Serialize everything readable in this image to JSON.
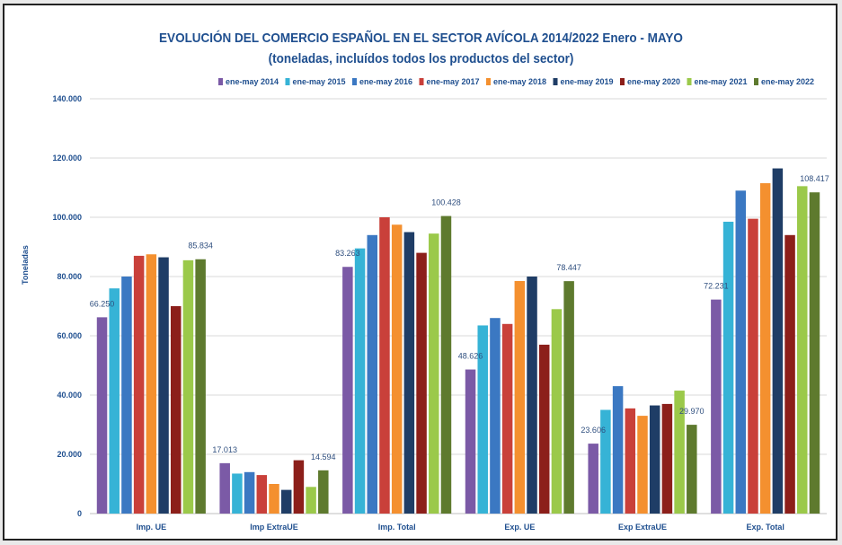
{
  "chart_data": {
    "type": "bar",
    "title": "EVOLUCIÓN DEL COMERCIO ESPAÑOL EN EL SECTOR AVÍCOLA 2014/2022 Enero - MAYO",
    "subtitle": "(toneladas, incluídos todos los productos del sector)",
    "ylabel": "Toneladas",
    "ylim": [
      0,
      140000
    ],
    "yticks": [
      0,
      20000,
      40000,
      60000,
      80000,
      100000,
      120000,
      140000
    ],
    "ytick_labels": [
      "0",
      "20.000",
      "40.000",
      "60.000",
      "80.000",
      "100.000",
      "120.000",
      "140.000"
    ],
    "legend_position": "top",
    "grid": true,
    "categories": [
      "Imp. UE",
      "Imp ExtraUE",
      "Imp. Total",
      "Exp. UE",
      "Exp ExtraUE",
      "Exp. Total"
    ],
    "series": [
      {
        "name": "ene-may 2014",
        "color": "#7b5aa6",
        "values": [
          66250,
          17013,
          83263,
          48626,
          23606,
          72231
        ]
      },
      {
        "name": "ene-may 2015",
        "color": "#36b3d6",
        "values": [
          76000,
          13500,
          89500,
          63500,
          35000,
          98500
        ]
      },
      {
        "name": "ene-may 2016",
        "color": "#3b78c2",
        "values": [
          80000,
          14000,
          94000,
          66000,
          43000,
          109000
        ]
      },
      {
        "name": "ene-may 2017",
        "color": "#c9403a",
        "values": [
          87000,
          13000,
          100000,
          64000,
          35500,
          99500
        ]
      },
      {
        "name": "ene-may 2018",
        "color": "#f4902f",
        "values": [
          87500,
          10000,
          97500,
          78500,
          33000,
          111500
        ]
      },
      {
        "name": "ene-may 2019",
        "color": "#1f3d66",
        "values": [
          86500,
          8000,
          95000,
          80000,
          36500,
          116500
        ]
      },
      {
        "name": "ene-may 2020",
        "color": "#8c1f1a",
        "values": [
          70000,
          18000,
          88000,
          57000,
          37000,
          94000
        ]
      },
      {
        "name": "ene-may 2021",
        "color": "#9bc94a",
        "values": [
          85500,
          9000,
          94500,
          69000,
          41500,
          110500
        ]
      },
      {
        "name": "ene-may 2022",
        "color": "#5e7a2e",
        "values": [
          85834,
          14594,
          100428,
          78447,
          29970,
          108417
        ]
      }
    ],
    "data_labels": [
      {
        "series": 0,
        "category": 0,
        "text": "66.250"
      },
      {
        "series": 8,
        "category": 0,
        "text": "85.834"
      },
      {
        "series": 0,
        "category": 1,
        "text": "17.013"
      },
      {
        "series": 8,
        "category": 1,
        "text": "14.594"
      },
      {
        "series": 0,
        "category": 2,
        "text": "83.263"
      },
      {
        "series": 8,
        "category": 2,
        "text": "100.428"
      },
      {
        "series": 0,
        "category": 3,
        "text": "48.626"
      },
      {
        "series": 8,
        "category": 3,
        "text": "78.447"
      },
      {
        "series": 0,
        "category": 4,
        "text": "23.606"
      },
      {
        "series": 8,
        "category": 4,
        "text": "29.970"
      },
      {
        "series": 0,
        "category": 5,
        "text": "72.231"
      },
      {
        "series": 8,
        "category": 5,
        "text": "108.417"
      }
    ]
  }
}
